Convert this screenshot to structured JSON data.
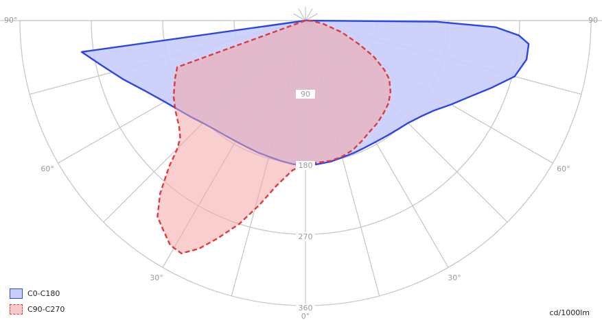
{
  "chart_data": {
    "type": "polar",
    "unit": "cd/1000lm",
    "radial_ticks": [
      {
        "value": 90,
        "label": "90"
      },
      {
        "value": 180,
        "label": "180"
      },
      {
        "value": 270,
        "label": "270"
      },
      {
        "value": 360,
        "label": "360"
      }
    ],
    "angle_labels": [
      {
        "angle": -90,
        "label": "90°"
      },
      {
        "angle": 90,
        "label": "90"
      },
      {
        "angle": -60,
        "label": "60°"
      },
      {
        "angle": 60,
        "label": "60°"
      },
      {
        "angle": -30,
        "label": "30°"
      },
      {
        "angle": 30,
        "label": "30°"
      },
      {
        "angle": 0,
        "label": "0°"
      }
    ],
    "ray_angles": [
      -90,
      -75,
      -60,
      -45,
      -30,
      -15,
      0,
      15,
      30,
      45,
      60,
      75,
      90
    ],
    "series": [
      {
        "name": "C0-C180",
        "color": "#2a45e8",
        "fill": "#c9cdfb",
        "dashed": false,
        "points": [
          [
            -82,
            285
          ],
          [
            -78,
            265
          ],
          [
            -72,
            241
          ],
          [
            -66,
            220
          ],
          [
            -60,
            205
          ],
          [
            -55,
            196
          ],
          [
            -50,
            189
          ],
          [
            -45,
            183
          ],
          [
            -40,
            179
          ],
          [
            -35,
            177
          ],
          [
            -30,
            176
          ],
          [
            -25,
            176
          ],
          [
            -20,
            177
          ],
          [
            -15,
            178
          ],
          [
            -10,
            180
          ],
          [
            -5,
            182
          ],
          [
            0,
            183
          ],
          [
            5,
            182
          ],
          [
            10,
            181
          ],
          [
            15,
            179
          ],
          [
            20,
            178
          ],
          [
            25,
            177
          ],
          [
            30,
            177
          ],
          [
            35,
            178
          ],
          [
            40,
            180
          ],
          [
            45,
            183
          ],
          [
            50,
            189
          ],
          [
            55,
            198
          ],
          [
            60,
            212
          ],
          [
            65,
            228
          ],
          [
            70,
            249
          ],
          [
            75,
            273
          ],
          [
            80,
            283
          ],
          [
            84,
            283
          ],
          [
            86,
            270
          ],
          [
            88,
            240
          ],
          [
            89.5,
            165
          ]
        ]
      },
      {
        "name": "C90-C270",
        "color": "#e03a3a",
        "fill": "#f2a6a6",
        "fill_opacity": 0.55,
        "dashed": true,
        "points": [
          [
            -70,
            172
          ],
          [
            -66,
            180
          ],
          [
            -60,
            192
          ],
          [
            -55,
            200
          ],
          [
            -50,
            208
          ],
          [
            -47,
            216
          ],
          [
            -45,
            228
          ],
          [
            -43,
            252
          ],
          [
            -40,
            285
          ],
          [
            -37,
            310
          ],
          [
            -34,
            320
          ],
          [
            -31,
            331
          ],
          [
            -28,
            333
          ],
          [
            -25,
            318
          ],
          [
            -22,
            297
          ],
          [
            -18,
            270
          ],
          [
            -14,
            240
          ],
          [
            -10,
            212
          ],
          [
            -5,
            190
          ],
          [
            0,
            180
          ],
          [
            5,
            180
          ],
          [
            10,
            180
          ],
          [
            15,
            178
          ],
          [
            20,
            174
          ],
          [
            25,
            168
          ],
          [
            30,
            162
          ],
          [
            35,
            158
          ],
          [
            40,
            153
          ],
          [
            45,
            148
          ],
          [
            50,
            140
          ],
          [
            55,
            129
          ],
          [
            58,
            117
          ],
          [
            62,
            98
          ],
          [
            66,
            75
          ],
          [
            72,
            48
          ],
          [
            80,
            22
          ],
          [
            86,
            8
          ]
        ]
      }
    ],
    "legend_position": "bottom-left"
  }
}
